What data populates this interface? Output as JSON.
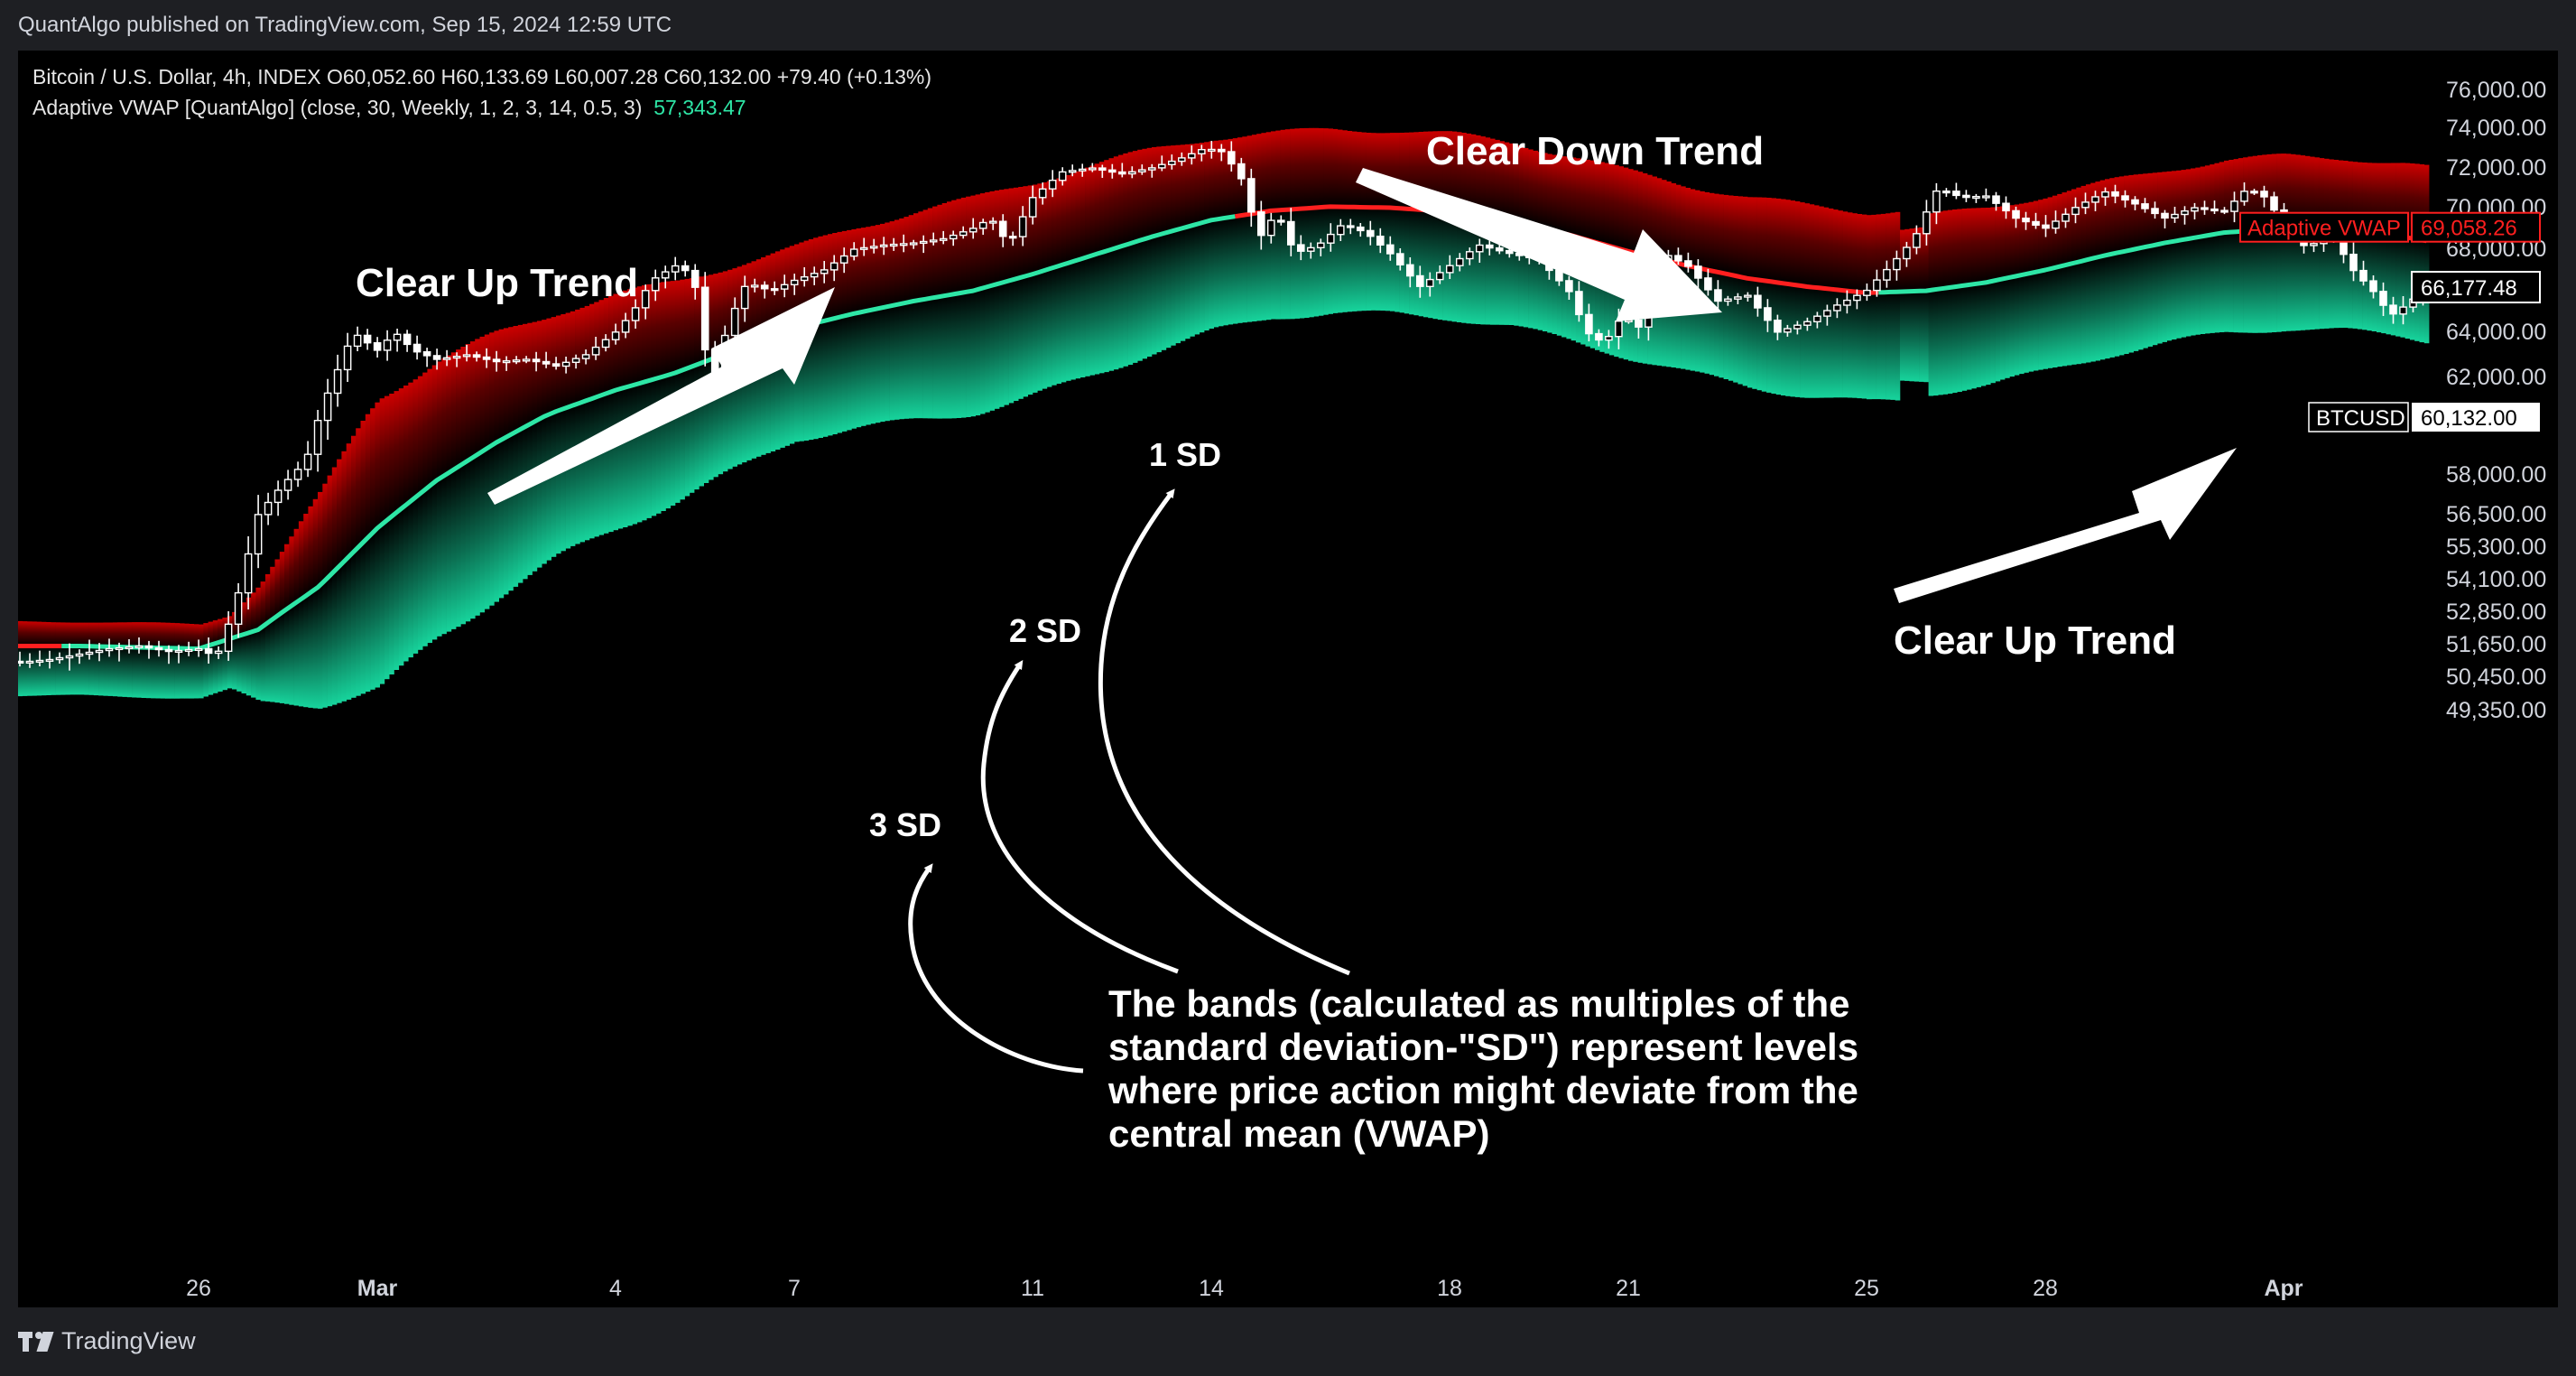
{
  "header": {
    "publisher_line": "QuantAlgo published on TradingView.com, Sep 15, 2024 12:59 UTC"
  },
  "legend": {
    "symbol_line": "Bitcoin / U.S. Dollar, 4h, INDEX  O60,052.60  H60,133.69  L60,007.28  C60,132.00  +79.40 (+0.13%)",
    "indicator_line": "Adaptive VWAP [QuantAlgo] (close, 30, Weekly, 1, 2, 3, 14, 0.5, 3)",
    "indicator_value": "57,343.47"
  },
  "footer": {
    "brand": "TradingView"
  },
  "colors": {
    "up": "#ffffff",
    "vwap_bull": "#2ee6a6",
    "vwap_bear": "#ff1f1f",
    "band_red": "#cc0000",
    "band_green": "#17d49c"
  },
  "chart_data": {
    "type": "candlestick",
    "title": "Bitcoin / U.S. Dollar, 4h, INDEX",
    "y_axis": {
      "side": "right",
      "ticks": [
        {
          "value": 76000,
          "label": "76,000.00"
        },
        {
          "value": 74000,
          "label": "74,000.00"
        },
        {
          "value": 72000,
          "label": "72,000.00"
        },
        {
          "value": 70000,
          "label": "70,000.00"
        },
        {
          "value": 68000,
          "label": "68,000.00"
        },
        {
          "value": 64000,
          "label": "64,000.00"
        },
        {
          "value": 62000,
          "label": "62,000.00"
        },
        {
          "value": 58000,
          "label": "58,000.00"
        },
        {
          "value": 56500,
          "label": "56,500.00"
        },
        {
          "value": 55300,
          "label": "55,300.00"
        },
        {
          "value": 54100,
          "label": "54,100.00"
        },
        {
          "value": 52850,
          "label": "52,850.00"
        },
        {
          "value": 51650,
          "label": "51,650.00"
        },
        {
          "value": 50450,
          "label": "50,450.00"
        },
        {
          "value": 49350,
          "label": "49,350.00"
        }
      ]
    },
    "x_axis": {
      "ticks": [
        {
          "day": 26,
          "label": "26",
          "bold": false
        },
        {
          "day": 29,
          "label": "Mar",
          "bold": true
        },
        {
          "day": 33,
          "label": "4",
          "bold": false
        },
        {
          "day": 36,
          "label": "7",
          "bold": false
        },
        {
          "day": 40,
          "label": "11",
          "bold": false
        },
        {
          "day": 43,
          "label": "14",
          "bold": false
        },
        {
          "day": 47,
          "label": "18",
          "bold": false
        },
        {
          "day": 50,
          "label": "21",
          "bold": false
        },
        {
          "day": 54,
          "label": "25",
          "bold": false
        },
        {
          "day": 57,
          "label": "28",
          "bold": false
        },
        {
          "day": 61,
          "label": "Apr",
          "bold": true
        }
      ]
    },
    "price_labels": [
      {
        "name": "Adaptive VWAP",
        "value": 69058.26,
        "label": "69,058.26",
        "style": "red-outline"
      },
      {
        "name": "",
        "value": 66177.48,
        "label": "66,177.48",
        "style": "white-outline"
      },
      {
        "name": "BTCUSD",
        "value": 60132.0,
        "label": "60,132.00",
        "style": "white-fill"
      }
    ],
    "price_path": [
      [
        22.0,
        51300
      ],
      [
        22.5,
        51100
      ],
      [
        23,
        51000
      ],
      [
        23.5,
        51100
      ],
      [
        24,
        51300
      ],
      [
        24.5,
        51500
      ],
      [
        25,
        51600
      ],
      [
        25.5,
        51400
      ],
      [
        26,
        51500
      ],
      [
        26.3,
        51200
      ],
      [
        26.6,
        53000
      ],
      [
        27,
        56500
      ],
      [
        27.4,
        57600
      ],
      [
        27.8,
        58500
      ],
      [
        28.2,
        61500
      ],
      [
        28.6,
        64000
      ],
      [
        29,
        63200
      ],
      [
        29.3,
        64000
      ],
      [
        29.6,
        63200
      ],
      [
        30,
        62800
      ],
      [
        30.5,
        63000
      ],
      [
        31,
        62700
      ],
      [
        31.5,
        62800
      ],
      [
        32,
        62500
      ],
      [
        32.5,
        63000
      ],
      [
        33,
        64000
      ],
      [
        33.3,
        65000
      ],
      [
        33.6,
        66500
      ],
      [
        34,
        67200
      ],
      [
        34.3,
        66800
      ],
      [
        34.6,
        61500
      ],
      [
        34.9,
        64500
      ],
      [
        35.2,
        66400
      ],
      [
        35.6,
        66000
      ],
      [
        36,
        66500
      ],
      [
        36.5,
        67000
      ],
      [
        37,
        68000
      ],
      [
        37.5,
        68200
      ],
      [
        38,
        68300
      ],
      [
        38.5,
        68500
      ],
      [
        39,
        69000
      ],
      [
        39.3,
        69500
      ],
      [
        39.6,
        68200
      ],
      [
        40,
        70500
      ],
      [
        40.5,
        71800
      ],
      [
        41,
        72000
      ],
      [
        41.5,
        71700
      ],
      [
        42,
        72000
      ],
      [
        42.5,
        72500
      ],
      [
        42.9,
        73000
      ],
      [
        43.2,
        72800
      ],
      [
        43.5,
        71500
      ],
      [
        43.8,
        68500
      ],
      [
        44.1,
        69800
      ],
      [
        44.4,
        67800
      ],
      [
        44.8,
        68200
      ],
      [
        45.2,
        69200
      ],
      [
        45.6,
        68800
      ],
      [
        46,
        67800
      ],
      [
        46.5,
        66200
      ],
      [
        47,
        67200
      ],
      [
        47.5,
        68200
      ],
      [
        48,
        67800
      ],
      [
        48.5,
        67500
      ],
      [
        49,
        66000
      ],
      [
        49.3,
        64000
      ],
      [
        49.6,
        63500
      ],
      [
        49.9,
        64800
      ],
      [
        50.2,
        64200
      ],
      [
        50.6,
        67800
      ],
      [
        51,
        67200
      ],
      [
        51.5,
        65500
      ],
      [
        52,
        65800
      ],
      [
        52.5,
        64000
      ],
      [
        53,
        64500
      ],
      [
        53.5,
        65300
      ],
      [
        54,
        66000
      ],
      [
        54.4,
        67200
      ],
      [
        54.8,
        68500
      ],
      [
        55.2,
        71000
      ],
      [
        55.6,
        70500
      ],
      [
        56,
        70600
      ],
      [
        56.5,
        69500
      ],
      [
        57,
        69000
      ],
      [
        57.5,
        70000
      ],
      [
        58,
        70800
      ],
      [
        58.5,
        70200
      ],
      [
        59,
        69500
      ],
      [
        59.5,
        70000
      ],
      [
        60,
        69800
      ],
      [
        60.4,
        71000
      ],
      [
        60.7,
        70500
      ],
      [
        61,
        69200
      ],
      [
        61.4,
        68000
      ],
      [
        61.8,
        69000
      ],
      [
        62.1,
        67200
      ],
      [
        62.5,
        66000
      ],
      [
        62.8,
        64800
      ],
      [
        63.1,
        65400
      ],
      [
        63.4,
        66200
      ]
    ],
    "vwap": [
      [
        22.0,
        51600
      ],
      [
        24,
        51600
      ],
      [
        26,
        51500
      ],
      [
        27,
        52200
      ],
      [
        28,
        53800
      ],
      [
        29,
        56000
      ],
      [
        30,
        57800
      ],
      [
        31,
        59200
      ],
      [
        32,
        60400
      ],
      [
        33,
        61400
      ],
      [
        34,
        62200
      ],
      [
        35,
        63200
      ],
      [
        36,
        64200
      ],
      [
        37,
        64900
      ],
      [
        38,
        65500
      ],
      [
        39,
        66000
      ],
      [
        40,
        66800
      ],
      [
        41,
        67700
      ],
      [
        42,
        68600
      ],
      [
        43,
        69400
      ],
      [
        44,
        69850
      ],
      [
        45,
        70050
      ],
      [
        46,
        70000
      ],
      [
        47,
        69800
      ],
      [
        48,
        69400
      ],
      [
        49,
        68700
      ],
      [
        50,
        67900
      ],
      [
        51,
        67200
      ],
      [
        52,
        66600
      ],
      [
        53,
        66200
      ],
      [
        54,
        65900
      ],
      [
        55,
        66000
      ],
      [
        56,
        66400
      ],
      [
        57,
        67000
      ],
      [
        58,
        67700
      ],
      [
        59,
        68300
      ],
      [
        60,
        68800
      ],
      [
        61,
        69000
      ],
      [
        62,
        68900
      ],
      [
        63,
        68600
      ],
      [
        63.4,
        68400
      ]
    ],
    "vwap_bear_segments": [
      [
        22.0,
        23.7
      ],
      [
        43.4,
        54.2
      ],
      [
        61.5,
        63.4
      ]
    ],
    "annotations": [
      {
        "text": "Clear Up Trend",
        "kind": "label"
      },
      {
        "text": "Clear Down Trend",
        "kind": "label"
      },
      {
        "text": "Clear Up Trend",
        "kind": "label"
      },
      {
        "text": "1 SD",
        "kind": "band-label"
      },
      {
        "text": "2 SD",
        "kind": "band-label"
      },
      {
        "text": "3 SD",
        "kind": "band-label"
      },
      {
        "text": "The bands (calculated as multiples of the standard deviation-\"SD\") represent levels where price action might deviate from the central mean (VWAP)",
        "kind": "note"
      }
    ],
    "note_lines": [
      "The bands (calculated as multiples of the",
      "standard deviation-\"SD\") represent levels",
      "where price action might deviate from the",
      "central mean (VWAP)"
    ]
  }
}
